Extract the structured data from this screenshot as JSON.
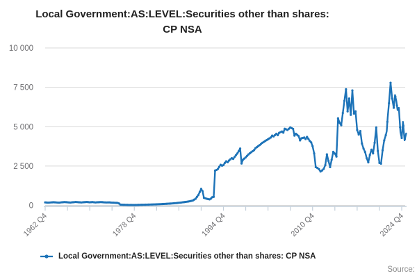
{
  "title": {
    "full": "Local Government:AS:LEVEL:Securities other than shares: CP NSA",
    "line1": "Local Government:AS:LEVEL:Securities other than shares:",
    "line2": "CP NSA"
  },
  "legend": {
    "label": "Local Government:AS:LEVEL:Securities other than shares: CP NSA"
  },
  "source_label": "Source:",
  "colors": {
    "line": "#1d73b8",
    "grid": "#d9d9d9",
    "axis": "#c3cfda",
    "title_text": "#222222",
    "tick_label_text": "#6e6e71",
    "source_text": "#8a8a8a"
  },
  "chart_data": {
    "type": "line",
    "title": "Local Government:AS:LEVEL:Securities other than shares: CP NSA",
    "xlabel": "",
    "ylabel": "",
    "ylim": [
      0,
      10000
    ],
    "yticks": [
      0,
      2500,
      5000,
      7500,
      10000
    ],
    "ytick_labels": [
      "0",
      "2 500",
      "5 000",
      "7 500",
      "10 000"
    ],
    "x_major_tick_labels": [
      "1962 Q4",
      "1978 Q4",
      "1994 Q4",
      "2010 Q4",
      "2024 Q4"
    ],
    "x_segment_years": [
      1962.75,
      1978.75,
      1994.75,
      2010.75,
      2024.75
    ],
    "x_minor_ticks_total": 17,
    "x_label_every_n_ticks": 4,
    "grid": "horizontal",
    "legend_position": "bottom-left",
    "series": [
      {
        "name": "Local Government:AS:LEVEL:Securities other than shares: CP NSA",
        "points": [
          [
            1962.75,
            190
          ],
          [
            1963.25,
            175
          ],
          [
            1963.75,
            185
          ],
          [
            1964.25,
            200
          ],
          [
            1964.75,
            185
          ],
          [
            1965.25,
            175
          ],
          [
            1965.75,
            195
          ],
          [
            1966.25,
            210
          ],
          [
            1966.75,
            195
          ],
          [
            1967.25,
            180
          ],
          [
            1967.75,
            200
          ],
          [
            1968.25,
            215
          ],
          [
            1968.75,
            200
          ],
          [
            1969.25,
            185
          ],
          [
            1969.75,
            205
          ],
          [
            1970.25,
            215
          ],
          [
            1970.75,
            195
          ],
          [
            1971.25,
            210
          ],
          [
            1971.75,
            185
          ],
          [
            1972.25,
            200
          ],
          [
            1972.75,
            210
          ],
          [
            1973.25,
            195
          ],
          [
            1973.75,
            185
          ],
          [
            1974.25,
            190
          ],
          [
            1974.75,
            175
          ],
          [
            1975.25,
            165
          ],
          [
            1975.75,
            155
          ],
          [
            1976.0,
            120
          ],
          [
            1976.25,
            50
          ],
          [
            1976.75,
            40
          ],
          [
            1977.25,
            35
          ],
          [
            1977.75,
            30
          ],
          [
            1978.25,
            30
          ],
          [
            1978.75,
            25
          ],
          [
            1979.25,
            30
          ],
          [
            1979.75,
            35
          ],
          [
            1980.25,
            40
          ],
          [
            1980.75,
            45
          ],
          [
            1981.25,
            50
          ],
          [
            1981.75,
            55
          ],
          [
            1982.25,
            60
          ],
          [
            1982.75,
            65
          ],
          [
            1983.25,
            75
          ],
          [
            1983.75,
            85
          ],
          [
            1984.25,
            95
          ],
          [
            1984.75,
            105
          ],
          [
            1985.25,
            115
          ],
          [
            1985.75,
            130
          ],
          [
            1986.25,
            145
          ],
          [
            1986.75,
            165
          ],
          [
            1987.25,
            185
          ],
          [
            1987.75,
            210
          ],
          [
            1988.25,
            235
          ],
          [
            1988.75,
            265
          ],
          [
            1989.25,
            310
          ],
          [
            1989.75,
            420
          ],
          [
            1990.25,
            660
          ],
          [
            1990.5,
            850
          ],
          [
            1990.75,
            1050
          ],
          [
            1991.0,
            900
          ],
          [
            1991.25,
            480
          ],
          [
            1991.5,
            450
          ],
          [
            1991.75,
            420
          ],
          [
            1992.0,
            400
          ],
          [
            1992.25,
            380
          ],
          [
            1992.5,
            430
          ],
          [
            1992.75,
            520
          ],
          [
            1993.0,
            540
          ],
          [
            1993.25,
            2210
          ],
          [
            1993.5,
            2250
          ],
          [
            1993.75,
            2310
          ],
          [
            1994.0,
            2450
          ],
          [
            1994.25,
            2580
          ],
          [
            1994.5,
            2520
          ],
          [
            1994.75,
            2560
          ],
          [
            1995.0,
            2700
          ],
          [
            1995.25,
            2800
          ],
          [
            1995.5,
            2740
          ],
          [
            1995.75,
            2850
          ],
          [
            1996.25,
            3000
          ],
          [
            1996.5,
            2950
          ],
          [
            1996.75,
            3080
          ],
          [
            1997.25,
            3300
          ],
          [
            1997.5,
            3450
          ],
          [
            1997.75,
            3610
          ],
          [
            1998.0,
            2660
          ],
          [
            1998.25,
            2900
          ],
          [
            1998.75,
            3050
          ],
          [
            1999.25,
            3240
          ],
          [
            1999.75,
            3380
          ],
          [
            2000.25,
            3510
          ],
          [
            2000.5,
            3630
          ],
          [
            2000.75,
            3700
          ],
          [
            2001.25,
            3830
          ],
          [
            2001.75,
            3980
          ],
          [
            2002.25,
            4090
          ],
          [
            2002.75,
            4200
          ],
          [
            2003.25,
            4310
          ],
          [
            2003.5,
            4430
          ],
          [
            2003.75,
            4380
          ],
          [
            2004.25,
            4550
          ],
          [
            2004.5,
            4460
          ],
          [
            2004.75,
            4610
          ],
          [
            2005.25,
            4690
          ],
          [
            2005.5,
            4620
          ],
          [
            2005.75,
            4870
          ],
          [
            2006.25,
            4790
          ],
          [
            2006.75,
            4950
          ],
          [
            2007.25,
            4860
          ],
          [
            2007.5,
            4430
          ],
          [
            2007.75,
            4550
          ],
          [
            2008.25,
            4400
          ],
          [
            2008.5,
            4130
          ],
          [
            2008.75,
            4260
          ],
          [
            2009.25,
            4310
          ],
          [
            2009.5,
            4210
          ],
          [
            2009.75,
            4350
          ],
          [
            2010.25,
            4090
          ],
          [
            2010.5,
            4000
          ],
          [
            2010.75,
            3760
          ],
          [
            2011.0,
            3300
          ],
          [
            2011.25,
            2430
          ],
          [
            2011.5,
            2380
          ],
          [
            2011.75,
            2300
          ],
          [
            2012.0,
            2150
          ],
          [
            2012.25,
            2220
          ],
          [
            2012.5,
            2320
          ],
          [
            2012.75,
            2560
          ],
          [
            2013.0,
            3240
          ],
          [
            2013.25,
            2820
          ],
          [
            2013.5,
            2430
          ],
          [
            2013.75,
            2900
          ],
          [
            2014.0,
            3400
          ],
          [
            2014.25,
            3290
          ],
          [
            2014.5,
            3100
          ],
          [
            2014.75,
            5530
          ],
          [
            2015.0,
            5240
          ],
          [
            2015.25,
            5090
          ],
          [
            2015.75,
            6640
          ],
          [
            2016.0,
            7380
          ],
          [
            2016.25,
            5970
          ],
          [
            2016.5,
            6790
          ],
          [
            2016.75,
            5750
          ],
          [
            2017.0,
            7300
          ],
          [
            2017.25,
            5830
          ],
          [
            2017.5,
            5970
          ],
          [
            2017.75,
            4790
          ],
          [
            2018.0,
            4500
          ],
          [
            2018.25,
            4720
          ],
          [
            2018.5,
            3930
          ],
          [
            2018.75,
            3610
          ],
          [
            2019.0,
            3390
          ],
          [
            2019.25,
            3000
          ],
          [
            2019.5,
            2730
          ],
          [
            2019.75,
            3200
          ],
          [
            2020.0,
            3540
          ],
          [
            2020.25,
            3300
          ],
          [
            2020.5,
            3980
          ],
          [
            2020.75,
            4950
          ],
          [
            2021.0,
            3460
          ],
          [
            2021.25,
            2700
          ],
          [
            2021.5,
            2650
          ],
          [
            2021.75,
            3500
          ],
          [
            2022.0,
            4130
          ],
          [
            2022.25,
            4460
          ],
          [
            2022.4,
            4720
          ],
          [
            2022.55,
            5600
          ],
          [
            2022.75,
            6490
          ],
          [
            2023.0,
            7790
          ],
          [
            2023.25,
            6790
          ],
          [
            2023.5,
            6200
          ],
          [
            2023.7,
            7010
          ],
          [
            2023.9,
            6640
          ],
          [
            2024.1,
            6050
          ],
          [
            2024.3,
            6200
          ],
          [
            2024.55,
            4650
          ],
          [
            2024.75,
            4280
          ],
          [
            2024.95,
            5310
          ],
          [
            2025.2,
            4130
          ],
          [
            2025.45,
            4570
          ]
        ]
      }
    ]
  }
}
